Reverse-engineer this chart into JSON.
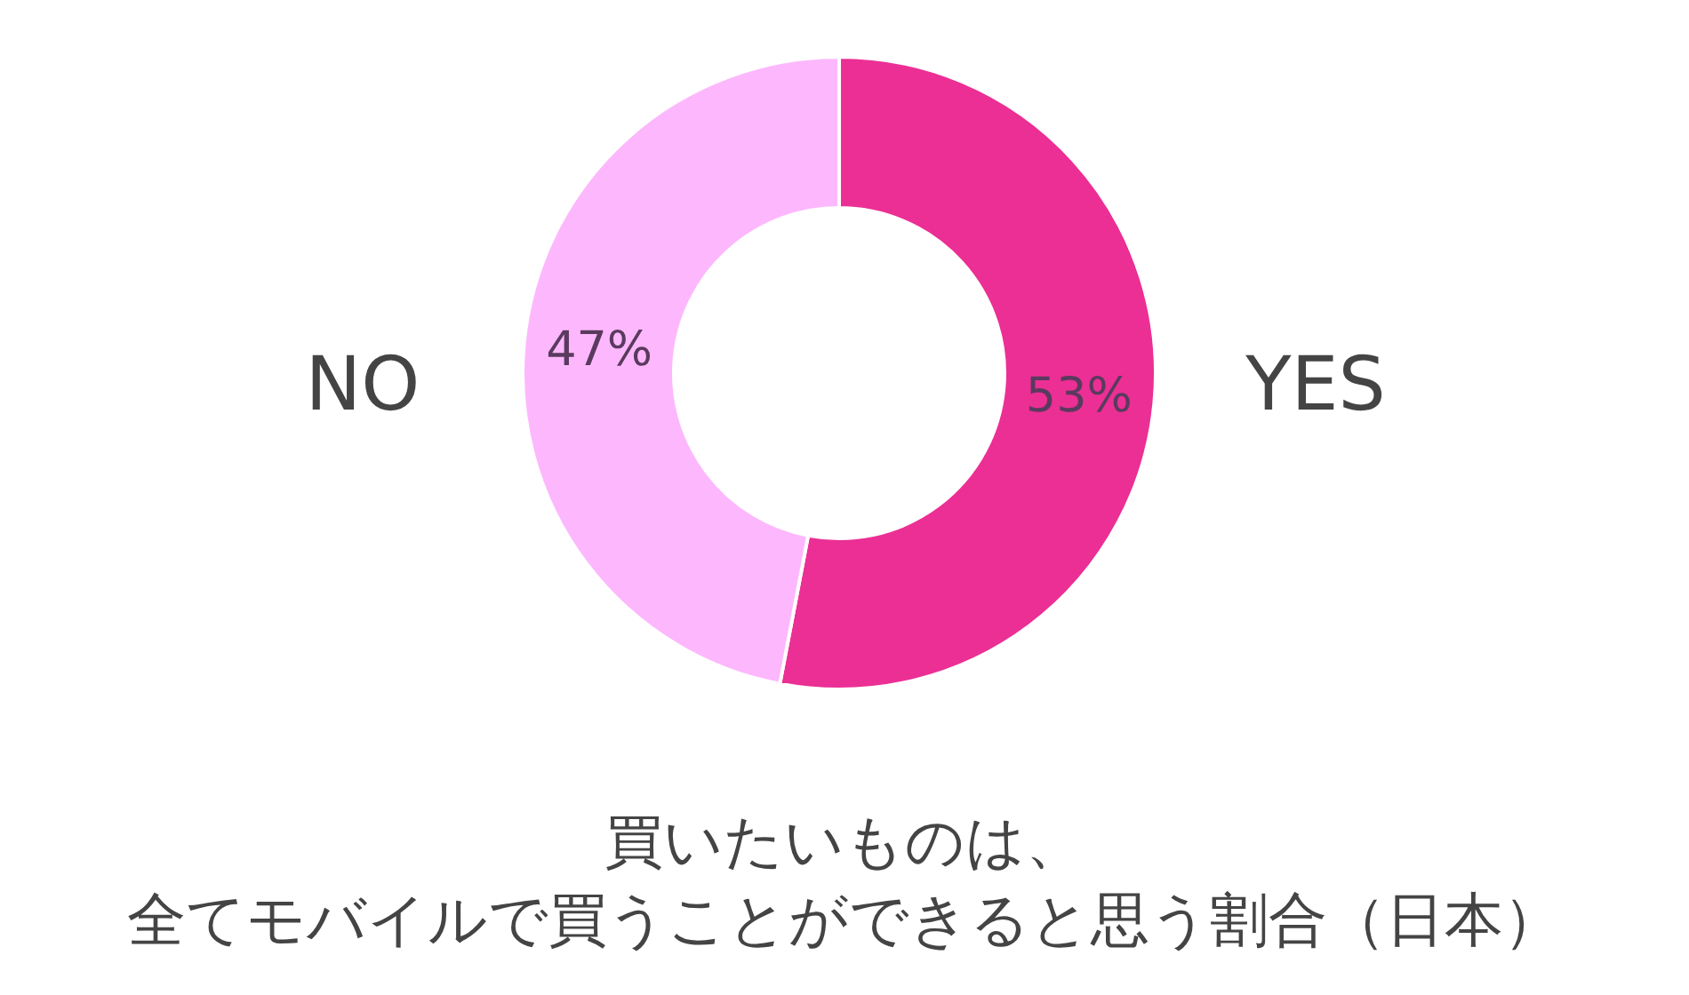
{
  "chart_data": {
    "type": "donut",
    "title": "買いたいものは、",
    "subtitle": "全てモバイルで買うことができると思う割合（日本）",
    "categories": [
      "YES",
      "NO"
    ],
    "values": [
      53,
      47
    ],
    "value_labels": [
      "53%",
      "47%"
    ],
    "colors": [
      "#eb2f94",
      "#fdb8fd"
    ]
  }
}
